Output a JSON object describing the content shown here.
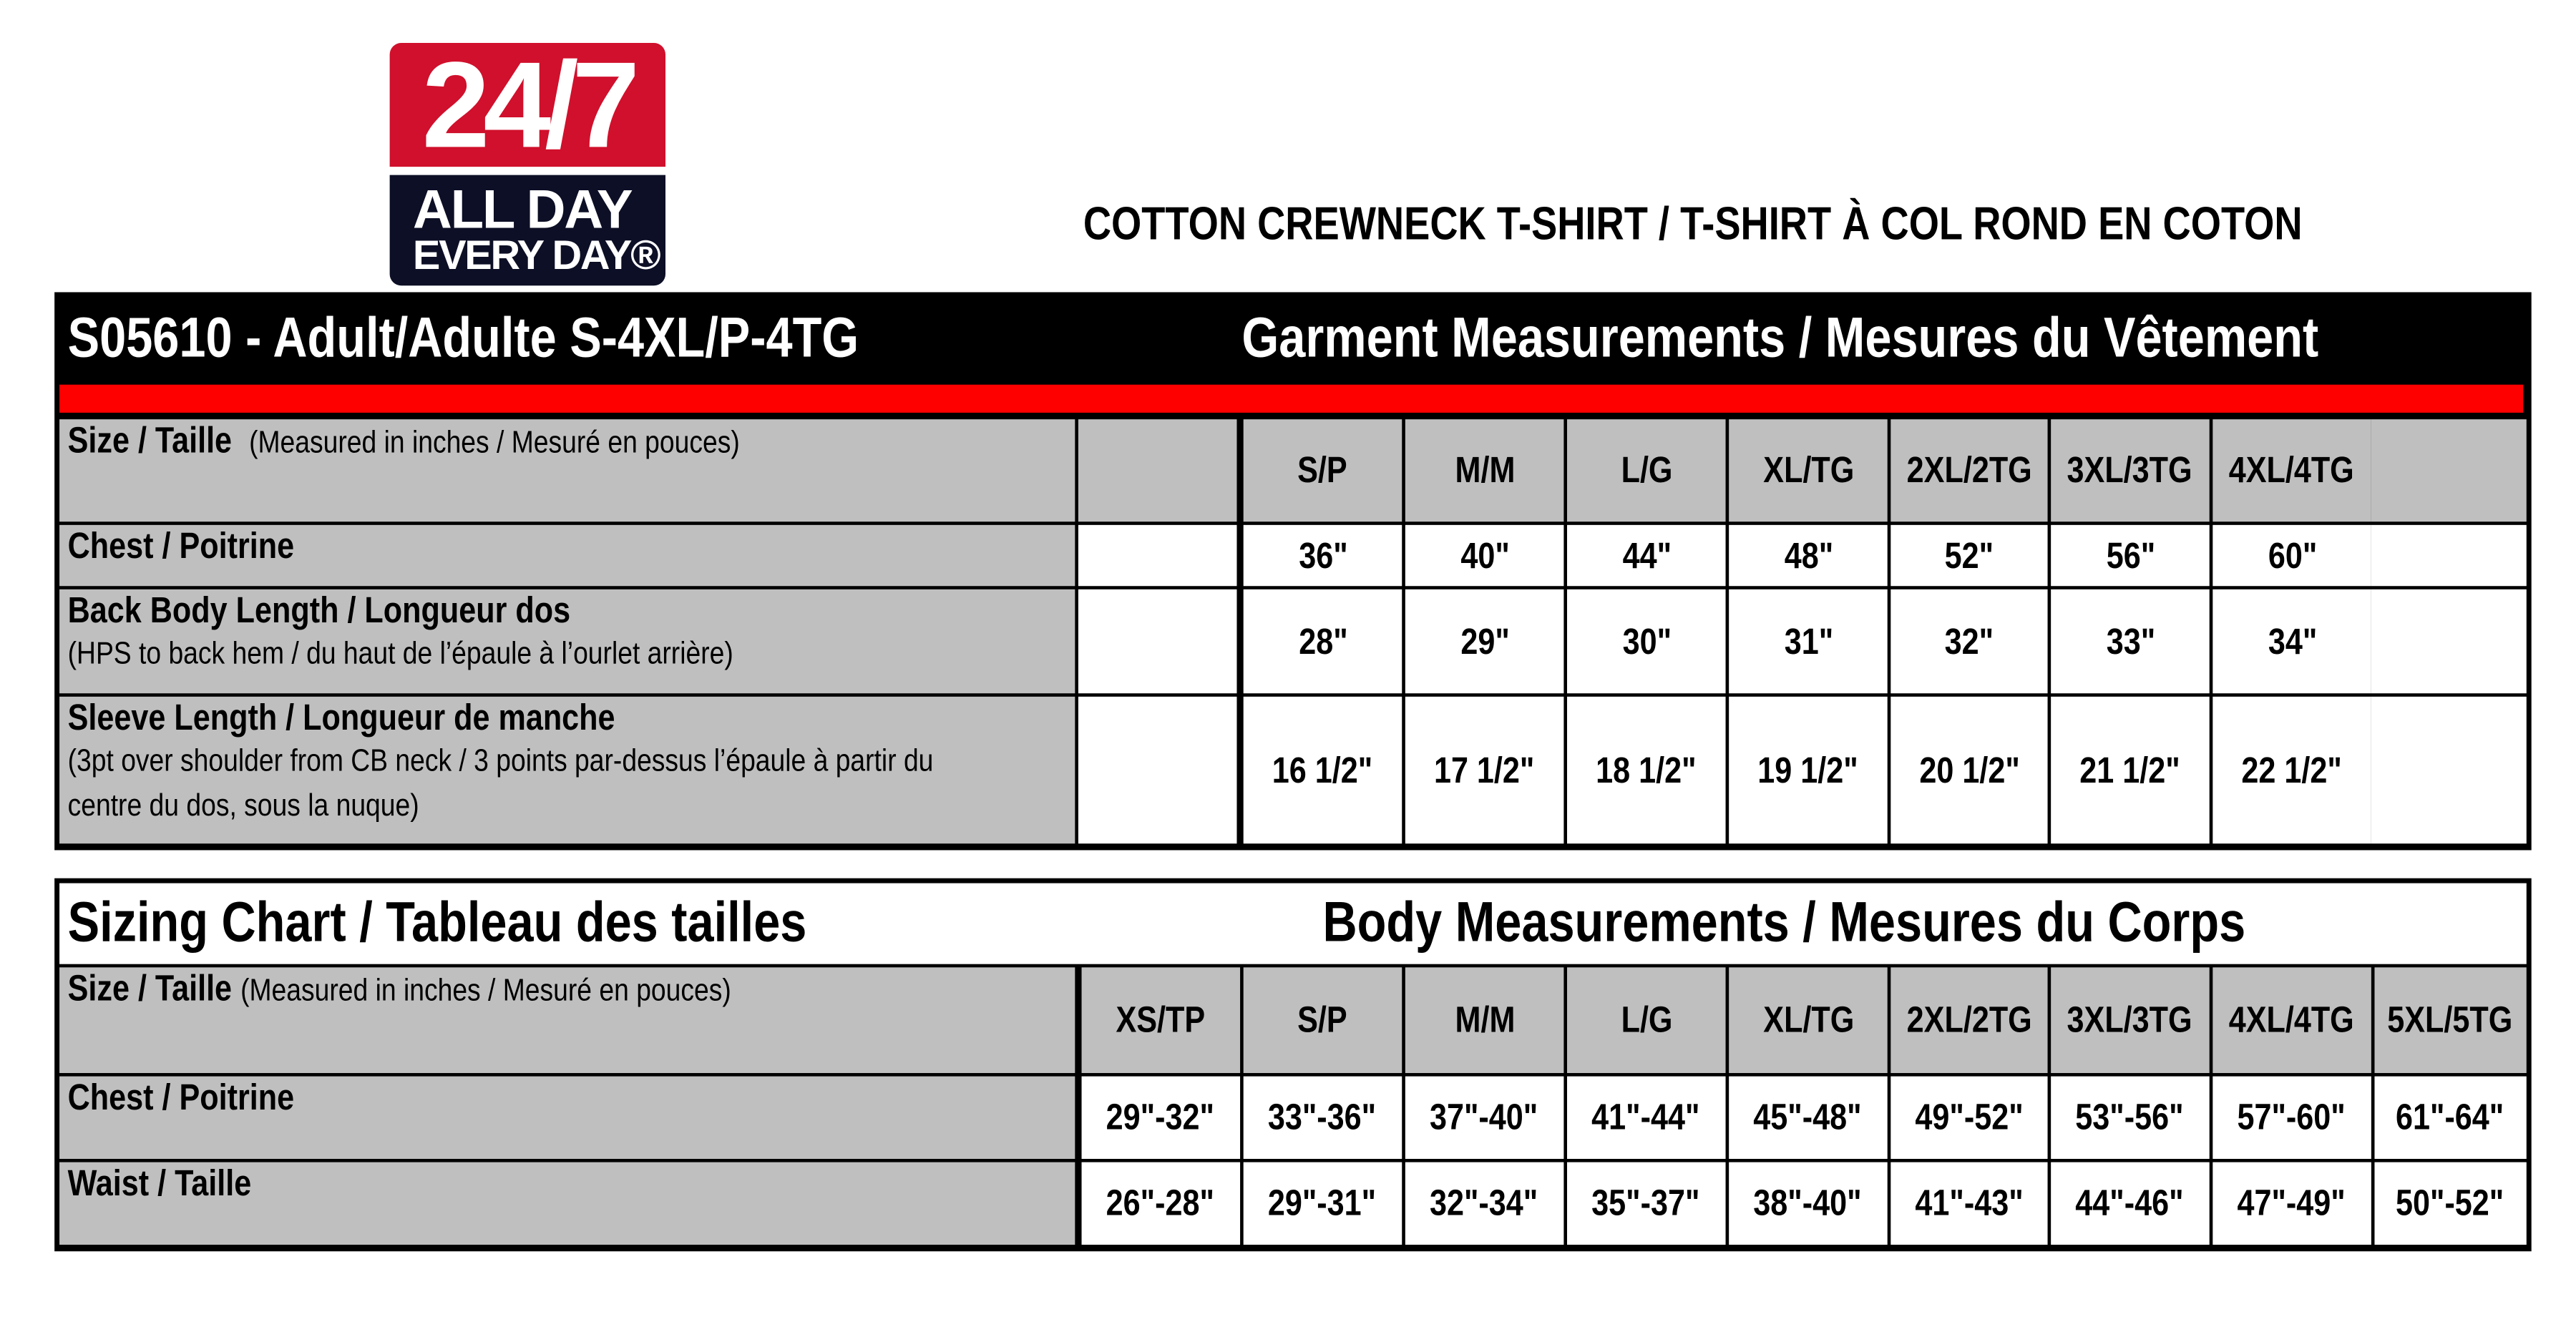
{
  "logo": {
    "line1": "24/7",
    "line2": "ALL DAY",
    "line3": "EVERY DAY®"
  },
  "document_title": "COTTON CREWNECK T-SHIRT / T-SHIRT À COL ROND EN COTON",
  "colors": {
    "logo_red": "#d0102c",
    "logo_navy": "#0d0f26",
    "band_red": "#ff0000",
    "label_gray": "#bfbfbf"
  },
  "garment": {
    "style_title": "S05610 - Adult/Adulte S-4XL/P-4TG",
    "section_title": "Garment Measurements / Mesures du Vêtement",
    "size_label": "Size / Taille",
    "size_note": "(Measured in inches / Mesuré en pouces)",
    "sizes": [
      "S/P",
      "M/M",
      "L/G",
      "XL/TG",
      "2XL/2TG",
      "3XL/3TG",
      "4XL/4TG"
    ],
    "rows": [
      {
        "label": "Chest / Poitrine",
        "note": "",
        "values": [
          "36\"",
          "40\"",
          "44\"",
          "48\"",
          "52\"",
          "56\"",
          "60\""
        ]
      },
      {
        "label": "Back Body Length / Longueur dos",
        "note": "(HPS to back hem  / du haut de l’épaule à l’ourlet arrière)",
        "values": [
          "28\"",
          "29\"",
          "30\"",
          "31\"",
          "32\"",
          "33\"",
          "34\""
        ]
      },
      {
        "label": "Sleeve Length / Longueur de manche",
        "note": "(3pt over shoulder from CB neck / 3 points par-dessus l’épaule à partir du centre du dos, sous la nuque)",
        "values": [
          "16 1/2\"",
          "17 1/2\"",
          "18 1/2\"",
          "19 1/2\"",
          "20 1/2\"",
          "21 1/2\"",
          "22 1/2\""
        ]
      }
    ]
  },
  "body": {
    "chart_title": "Sizing Chart / Tableau des tailles",
    "section_title": "Body Measurements / Mesures du Corps",
    "size_label": "Size / Taille",
    "size_note": "(Measured in inches / Mesuré en pouces)",
    "sizes": [
      "XS/TP",
      "S/P",
      "M/M",
      "L/G",
      "XL/TG",
      "2XL/2TG",
      "3XL/3TG",
      "4XL/4TG",
      "5XL/5TG"
    ],
    "rows": [
      {
        "label": "Chest / Poitrine",
        "values": [
          "29\"-32\"",
          "33\"-36\"",
          "37\"-40\"",
          "41\"-44\"",
          "45\"-48\"",
          "49\"-52\"",
          "53\"-56\"",
          "57\"-60\"",
          "61\"-64\""
        ]
      },
      {
        "label": "Waist / Taille",
        "values": [
          "26\"-28\"",
          "29\"-31\"",
          "32\"-34\"",
          "35\"-37\"",
          "38\"-40\"",
          "41\"-43\"",
          "44\"-46\"",
          "47\"-49\"",
          "50\"-52\""
        ]
      }
    ]
  }
}
